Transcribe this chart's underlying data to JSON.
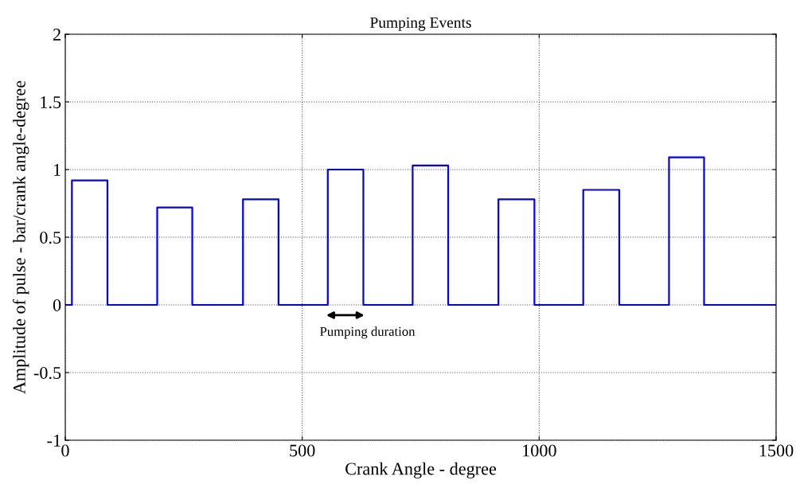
{
  "chart_data": {
    "type": "line",
    "title": "Pumping Events",
    "xlabel": "Crank Angle - degree",
    "ylabel": "Amplitude of pulse - bar/crank angle-degree",
    "x": [
      0,
      14,
      14,
      89,
      89,
      194,
      194,
      268,
      268,
      375,
      375,
      450,
      450,
      554,
      554,
      629,
      629,
      733,
      733,
      808,
      808,
      914,
      914,
      990,
      990,
      1093,
      1093,
      1169,
      1169,
      1274,
      1274,
      1348,
      1348,
      1500
    ],
    "series": [
      {
        "color": "#0000ff",
        "values": [
          0,
          0,
          0.92,
          0.92,
          0,
          0,
          0.72,
          0.72,
          0,
          0,
          0.78,
          0.78,
          0,
          0,
          1.0,
          1.0,
          0,
          0,
          1.03,
          1.03,
          0,
          0,
          0.78,
          0.78,
          0,
          0,
          0.85,
          0.85,
          0,
          0,
          1.09,
          1.09,
          0,
          0
        ]
      }
    ],
    "xlim": [
      0,
      1500
    ],
    "xticks": [
      0,
      500,
      1000,
      1500
    ],
    "ylim": [
      -1,
      2
    ],
    "yticks": [
      -1,
      -0.5,
      0,
      0.5,
      1,
      1.5,
      2
    ],
    "grid": true,
    "line_style": "solid",
    "marker": "none",
    "annotations": [
      "Pumping duration"
    ]
  }
}
